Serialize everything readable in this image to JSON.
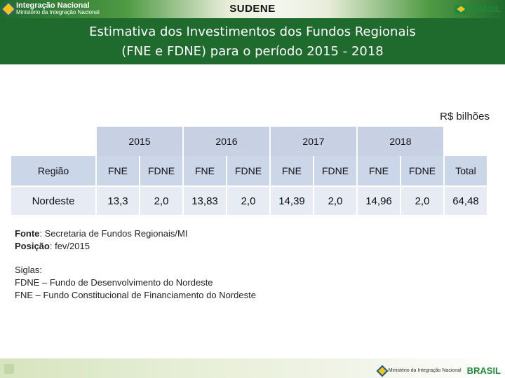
{
  "header": {
    "logo_left_title": "Integração Nacional",
    "logo_left_sub": "Ministério da Integração Nacional",
    "center_title": "SUDENE",
    "logo_right_brand": "BRASIL"
  },
  "banner": {
    "line1": "Estimativa dos Investimentos dos Fundos Regionais",
    "line2": "(FNE e FDNE) para o período 2015 - 2018"
  },
  "unit": "R$ bilhões",
  "table": {
    "years": [
      "2015",
      "2016",
      "2017",
      "2018"
    ],
    "columns": [
      "Região",
      "FNE",
      "FDNE",
      "FNE",
      "FDNE",
      "FNE",
      "FDNE",
      "FNE",
      "FDNE",
      "Total"
    ],
    "row": [
      "Nordeste",
      "13,3",
      "2,0",
      "13,83",
      "2,0",
      "14,39",
      "2,0",
      "14,96",
      "2,0",
      "64,48"
    ]
  },
  "notes": {
    "fonte_label": "Fonte",
    "fonte_value": ": Secretaria de Fundos Regionais/MI",
    "posicao_label": "Posição",
    "posicao_value": ": fev/2015",
    "siglas_label": "Siglas",
    "siglas_colon": ":",
    "fdne": "FDNE – Fundo de Desenvolvimento do Nordeste",
    "fne": "FNE – Fundo Constitucional de Financiamento do Nordeste"
  },
  "footer": {
    "ministry": "Ministério da Integração Nacional",
    "brand": "BRASIL"
  },
  "colors": {
    "banner": "#1f6b2e",
    "year_header": "#c8d1e4",
    "subheader": "#ccd6e9",
    "data_row": "#e6ebf4"
  }
}
